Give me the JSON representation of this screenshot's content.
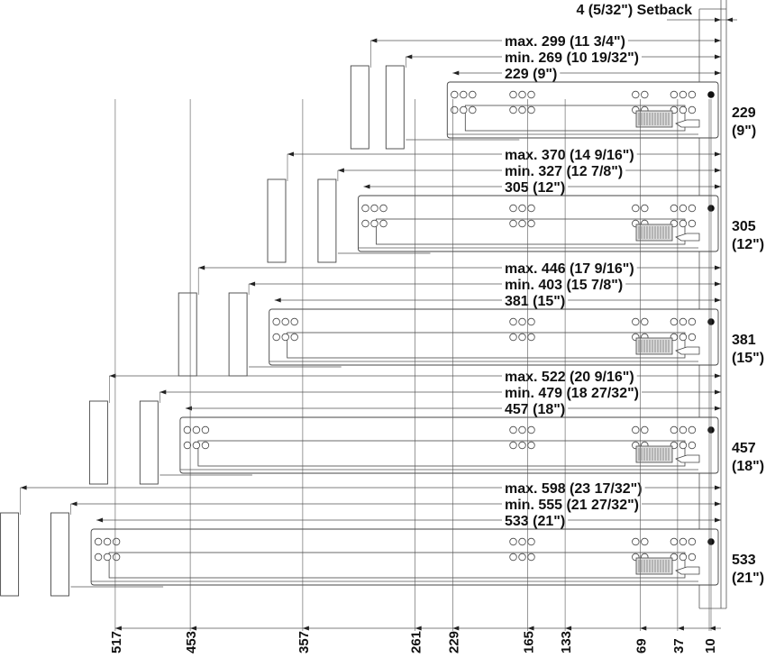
{
  "setback": "4 (5/32\") Setback",
  "rows": [
    {
      "length_mm": 229,
      "min_mm": 269,
      "max_mm": 299,
      "max_label": "max. 299 (11 3/4\")",
      "min_label": "min. 269 (10 19/32\")",
      "nominal_label": "229 (9\")",
      "side_mm": "229",
      "side_in": "(9\")"
    },
    {
      "length_mm": 305,
      "min_mm": 327,
      "max_mm": 370,
      "max_label": "max. 370 (14 9/16\")",
      "min_label": "min. 327 (12 7/8\")",
      "nominal_label": "305 (12\")",
      "side_mm": "305",
      "side_in": "(12\")"
    },
    {
      "length_mm": 381,
      "min_mm": 403,
      "max_mm": 446,
      "max_label": "max. 446 (17 9/16\")",
      "min_label": "min. 403 (15 7/8\")",
      "nominal_label": "381 (15\")",
      "side_mm": "381",
      "side_in": "(15\")"
    },
    {
      "length_mm": 457,
      "min_mm": 479,
      "max_mm": 522,
      "max_label": "max. 522 (20 9/16\")",
      "min_label": "min. 479 (18 27/32\")",
      "nominal_label": "457 (18\")",
      "side_mm": "457",
      "side_in": "(18\")"
    },
    {
      "length_mm": 533,
      "min_mm": 555,
      "max_mm": 598,
      "max_label": "max. 598 (23 17/32\")",
      "min_label": "min. 555 (21 27/32\")",
      "nominal_label": "533 (21\")",
      "side_mm": "533",
      "side_in": "(21\")"
    }
  ],
  "bottom_dimensions": [
    "517",
    "453",
    "357",
    "261",
    "229",
    "165",
    "133",
    "69",
    "37",
    "10"
  ]
}
